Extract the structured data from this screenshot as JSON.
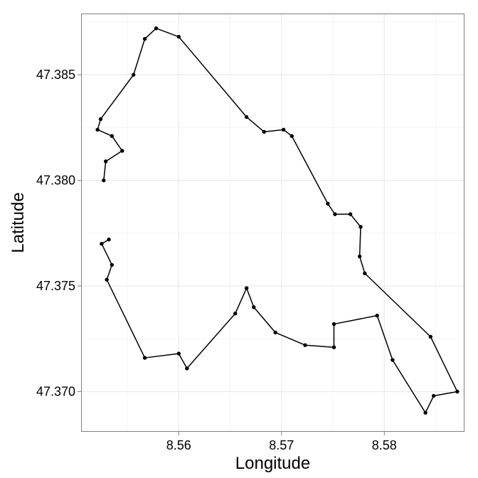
{
  "chart_data": {
    "type": "line",
    "title": "",
    "xlabel": "Longitude",
    "ylabel": "Latitude",
    "xlim": [
      8.5505,
      8.5878
    ],
    "ylim": [
      47.3681,
      47.3879
    ],
    "x_ticks": [
      8.56,
      8.57,
      8.58
    ],
    "y_ticks": [
      47.37,
      47.375,
      47.38,
      47.385
    ],
    "x_tick_labels": [
      "8.56",
      "8.57",
      "8.58"
    ],
    "y_tick_labels": [
      "47.370",
      "47.375",
      "47.380",
      "47.385"
    ],
    "grid": true,
    "legend": "none",
    "colors": {
      "line": "#000000",
      "point": "#000000",
      "panel_border": "#7f7f7f",
      "grid_major": "#ebebeb",
      "grid_minor": "#f5f5f5"
    },
    "series": [
      {
        "name": "",
        "points": [
          [
            8.5527,
            47.38
          ],
          [
            8.5529,
            47.3809
          ],
          [
            8.5545,
            47.3814
          ],
          [
            8.5535,
            47.3821
          ],
          [
            8.5521,
            47.3824
          ],
          [
            8.5524,
            47.3829
          ],
          [
            8.5556,
            47.385
          ],
          [
            8.5567,
            47.3867
          ],
          [
            8.5578,
            47.3872
          ],
          [
            8.56,
            47.3868
          ],
          [
            8.5666,
            47.383
          ],
          [
            8.5683,
            47.3823
          ],
          [
            8.5702,
            47.3824
          ],
          [
            8.571,
            47.3821
          ],
          [
            8.5745,
            47.3789
          ],
          [
            8.5752,
            47.3784
          ],
          [
            8.5767,
            47.3784
          ],
          [
            8.5777,
            47.3778
          ],
          [
            8.5776,
            47.3764
          ],
          [
            8.5781,
            47.3756
          ],
          [
            8.5845,
            47.3726
          ],
          [
            8.5871,
            47.37
          ],
          [
            8.5848,
            47.3698
          ],
          [
            8.584,
            47.369
          ],
          [
            8.5808,
            47.3715
          ],
          [
            8.5793,
            47.3736
          ],
          [
            8.5751,
            47.3732
          ],
          [
            8.5751,
            47.3721
          ],
          [
            8.5723,
            47.3722
          ],
          [
            8.5694,
            47.3728
          ],
          [
            8.5673,
            47.374
          ],
          [
            8.5666,
            47.3749
          ],
          [
            8.5655,
            47.3737
          ],
          [
            8.5608,
            47.3711
          ],
          [
            8.56,
            47.3718
          ],
          [
            8.5567,
            47.3716
          ],
          [
            8.553,
            47.3753
          ],
          [
            8.5535,
            47.376
          ],
          [
            8.5525,
            47.377
          ],
          [
            8.5532,
            47.3772
          ]
        ]
      }
    ]
  }
}
